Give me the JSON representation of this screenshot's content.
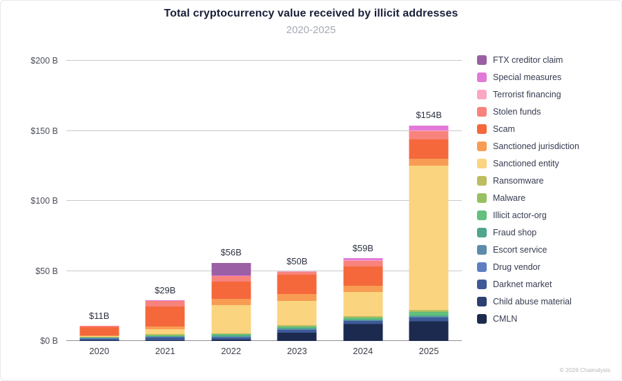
{
  "header": {
    "title": "Total cryptocurrency value received by illicit addresses",
    "subtitle": "2020-2025"
  },
  "footer": {
    "copyright": "© 2026 Chainalysis"
  },
  "chart_data": {
    "type": "bar",
    "stacked": true,
    "title": "Total cryptocurrency value received by illicit addresses",
    "subtitle": "2020-2025",
    "xlabel": "",
    "ylabel": "",
    "ylim": [
      0,
      200
    ],
    "grid": true,
    "legend_position": "right",
    "categories": [
      "2020",
      "2021",
      "2022",
      "2023",
      "2024",
      "2025"
    ],
    "bar_total_labels": [
      "$11B",
      "$29B",
      "$56B",
      "$50B",
      "$59B",
      "$154B"
    ],
    "bar_totals": [
      11,
      29,
      56,
      50,
      59,
      154
    ],
    "yticks": [
      {
        "value": 0,
        "label": "$0 B"
      },
      {
        "value": 50,
        "label": "$50 B"
      },
      {
        "value": 100,
        "label": "$100 B"
      },
      {
        "value": 150,
        "label": "$150 B"
      },
      {
        "value": 200,
        "label": "$200 B"
      }
    ],
    "series": [
      {
        "name": "FTX creditor claim",
        "color": "#9b5fa5",
        "values": [
          0,
          0,
          9.0,
          0,
          0,
          0
        ]
      },
      {
        "name": "Special measures",
        "color": "#e279d8",
        "values": [
          0,
          0.1,
          0.4,
          0.3,
          1.5,
          3.5
        ]
      },
      {
        "name": "Terrorist financing",
        "color": "#fba7c3",
        "values": [
          0.1,
          0.2,
          0.2,
          0.3,
          0.4,
          0.5
        ]
      },
      {
        "name": "Stolen funds",
        "color": "#f8837c",
        "values": [
          0.8,
          3.8,
          3.8,
          1.8,
          3.8,
          6.0
        ]
      },
      {
        "name": "Scam",
        "color": "#f4683c",
        "values": [
          6.3,
          14.5,
          12.5,
          14.0,
          14.0,
          14.0
        ]
      },
      {
        "name": "Sanctioned jurisdiction",
        "color": "#f89c53",
        "values": [
          0.5,
          2.0,
          4.5,
          5.0,
          4.5,
          5.0
        ]
      },
      {
        "name": "Sanctioned entity",
        "color": "#fad47f",
        "values": [
          0.4,
          3.5,
          20.0,
          17.0,
          17.0,
          103.0
        ]
      },
      {
        "name": "Ransomware",
        "color": "#bdbd60",
        "values": [
          0.2,
          0.6,
          0.5,
          1.1,
          0.8,
          1.0
        ]
      },
      {
        "name": "Malware",
        "color": "#97c05f",
        "values": [
          0.1,
          0.2,
          0.3,
          0.3,
          0.3,
          0.5
        ]
      },
      {
        "name": "Illicit actor-org",
        "color": "#62bf7c",
        "values": [
          0.3,
          0.5,
          0.9,
          1.0,
          1.2,
          2.0
        ]
      },
      {
        "name": "Fraud shop",
        "color": "#4fa68b",
        "values": [
          0.4,
          0.6,
          0.7,
          0.7,
          0.7,
          1.0
        ]
      },
      {
        "name": "Escort service",
        "color": "#5e8bab",
        "values": [
          0.1,
          0.1,
          0.2,
          0.3,
          0.3,
          0.3
        ]
      },
      {
        "name": "Drug vendor",
        "color": "#5e7ec1",
        "values": [
          0.2,
          0.3,
          0.3,
          0.4,
          0.4,
          0.5
        ]
      },
      {
        "name": "Darknet market",
        "color": "#3d5a96",
        "values": [
          1.2,
          2.1,
          1.6,
          1.7,
          2.0,
          2.5
        ]
      },
      {
        "name": "Child abuse material",
        "color": "#2d4070",
        "values": [
          0.1,
          0.1,
          0.1,
          0.1,
          0.1,
          0.2
        ]
      },
      {
        "name": "CMLN",
        "color": "#1c2a4f",
        "values": [
          0.3,
          0.4,
          1.0,
          6.0,
          12.0,
          14.0
        ]
      }
    ]
  }
}
